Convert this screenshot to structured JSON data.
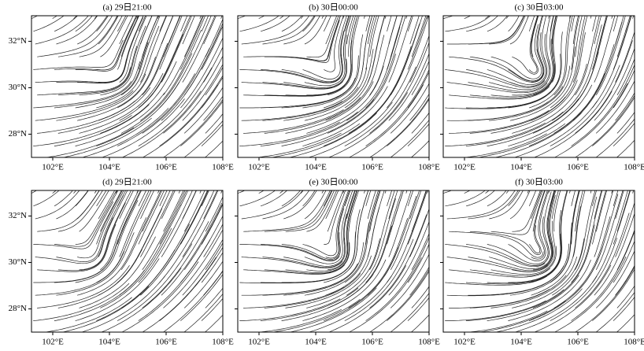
{
  "figure": {
    "panels": [
      {
        "title": "(a) 29日21:00"
      },
      {
        "title": "(b) 30日00:00"
      },
      {
        "title": "(c) 30日03:00"
      },
      {
        "title": "(d) 29日21:00"
      },
      {
        "title": "(e) 30日00:00"
      },
      {
        "title": "(f) 30日03:00"
      }
    ],
    "xlim": [
      101.25,
      108
    ],
    "ylim": [
      27,
      33.1
    ],
    "xticks": [
      {
        "value": 102,
        "label": "102°E"
      },
      {
        "value": 104,
        "label": "104°E"
      },
      {
        "value": 106,
        "label": "106°E"
      },
      {
        "value": 108,
        "label": "108°E"
      }
    ],
    "yticks": [
      {
        "value": 28,
        "label": "28°N"
      },
      {
        "value": 30,
        "label": "30°N"
      },
      {
        "value": 32,
        "label": "32°N"
      }
    ]
  }
}
